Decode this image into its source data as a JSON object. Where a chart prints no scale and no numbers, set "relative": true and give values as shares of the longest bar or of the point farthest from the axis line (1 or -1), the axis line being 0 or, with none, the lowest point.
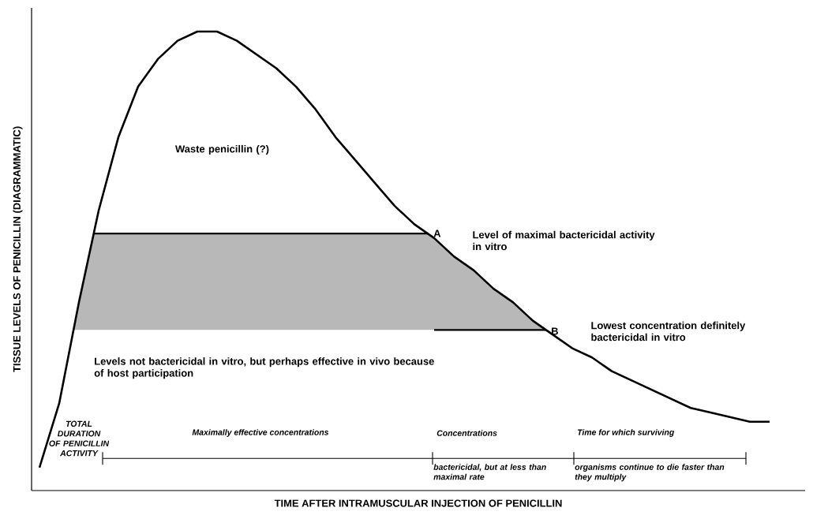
{
  "chart_data": {
    "type": "line",
    "relative": true,
    "color": "#000000",
    "marker": "none",
    "xlabel": "TIME AFTER INTRAMUSCULAR INJECTION OF PENICILLIN",
    "ylabel": "TISSUE LEVELS OF PENICILLIN (DIAGRAMMATIC)",
    "categories": [
      null,
      null,
      null,
      null,
      null,
      null,
      null,
      null,
      null,
      null,
      null,
      null,
      null,
      null,
      null,
      null,
      null,
      null,
      null,
      null,
      null,
      null,
      null,
      null,
      null,
      null,
      null,
      null,
      null,
      null,
      null,
      null,
      null,
      null,
      null,
      null,
      null,
      null
    ],
    "values": [
      0.05,
      0.19,
      0.41,
      0.61,
      0.77,
      0.88,
      0.94,
      0.98,
      1.0,
      1.0,
      0.98,
      0.95,
      0.92,
      0.88,
      0.83,
      0.77,
      0.72,
      0.67,
      0.62,
      0.58,
      0.55,
      0.51,
      0.48,
      0.44,
      0.41,
      0.37,
      0.34,
      0.31,
      0.29,
      0.26,
      0.24,
      0.22,
      0.2,
      0.18,
      0.17,
      0.16,
      0.15,
      0.15
    ],
    "ref_lines": [
      {
        "axis": "y",
        "value": 0.56,
        "label": "Level of maximal bactericidal activity in vitro",
        "color": "#000000"
      },
      {
        "axis": "y",
        "value": 0.35,
        "label": "Lowest concentration definitely bactericidal in vitro",
        "color": "#000000"
      },
      {
        "axis": "y",
        "value": 0.07,
        "color": "#000000"
      }
    ],
    "bands": [
      {
        "axis": "y",
        "from": 0.35,
        "to": 0.56,
        "color": "#b8b8b8"
      }
    ],
    "annotations": [
      "Waste penicillin (?)",
      "A",
      "B",
      "Levels not bactericidal in vitro, but perhaps effective in vivo because of host participation",
      "TOTAL DURATION OF PENICILLIN ACTIVITY",
      "Maximally effective concentrations",
      "Concentrations",
      "bactericidal, but at less than maximal rate",
      "Time for which surviving",
      "organisms continue to die faster than they multiply"
    ]
  }
}
